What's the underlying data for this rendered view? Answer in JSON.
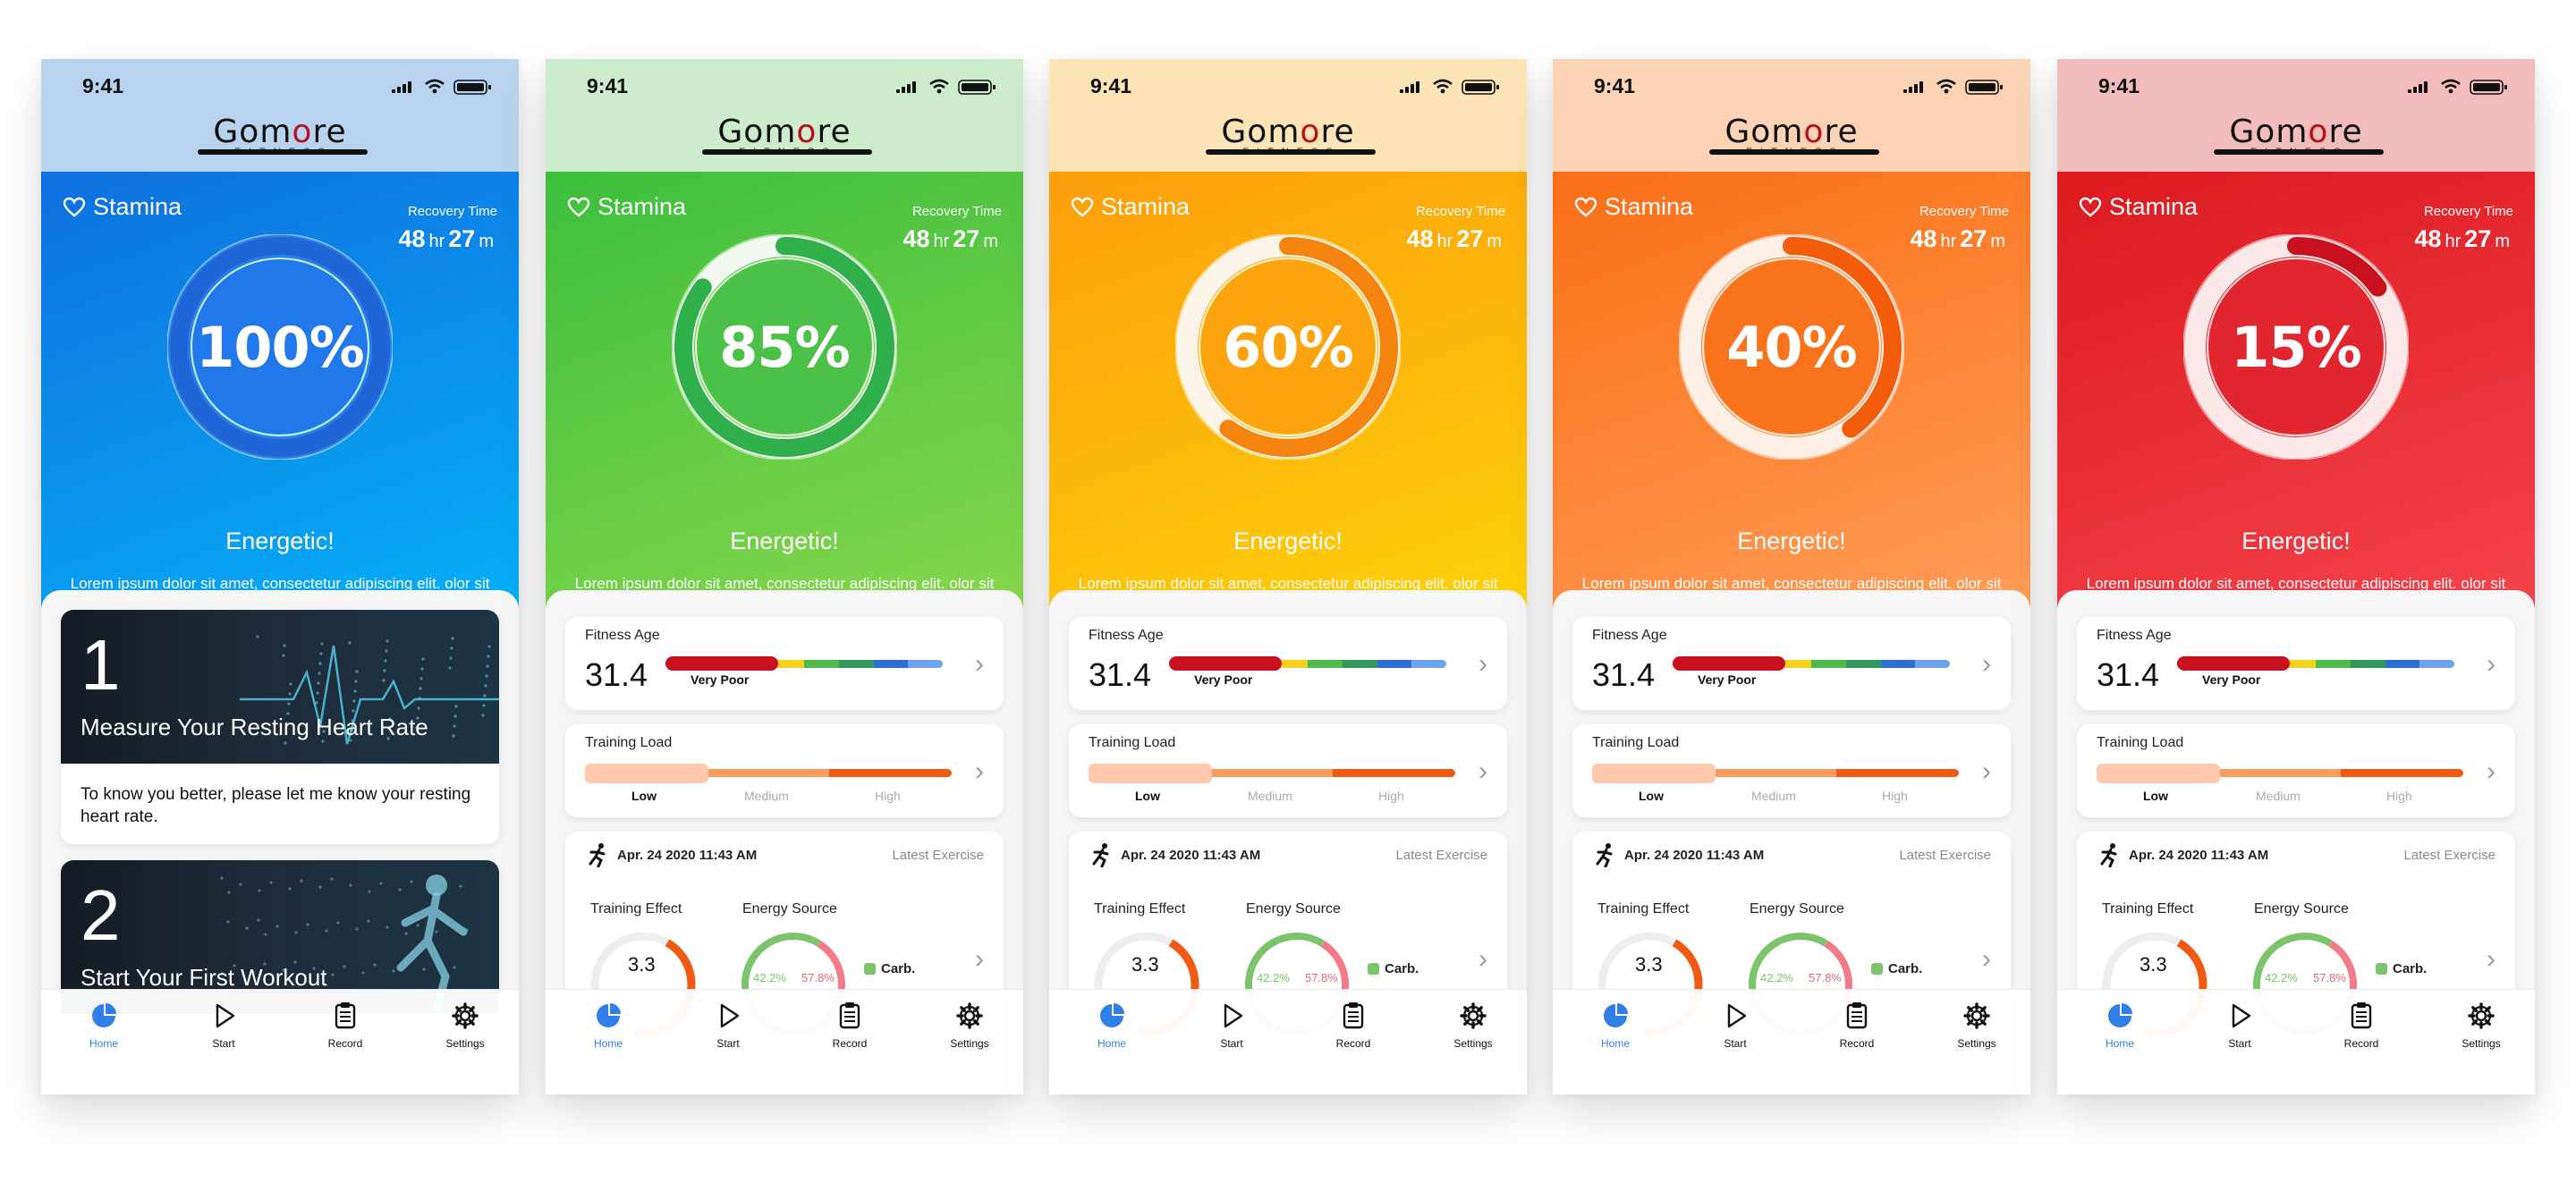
{
  "screens": [
    {
      "status": {
        "time": "9:41"
      },
      "theme": {
        "top": "#b7d3ef",
        "heroTop": "#0f6fe0",
        "heroBottom": "#06b3f7",
        "ringTrack": "#2f7fea",
        "ringArc": "#1e66d8",
        "inner": "#2178ea"
      },
      "stamina": {
        "label": "Stamina",
        "percent": 100,
        "percent_text": "100%"
      },
      "recovery": {
        "label": "Recovery Time",
        "hours": "48",
        "hr_unit": "hr",
        "minutes": "27",
        "min_unit": "m"
      },
      "status_title": "Energetic!",
      "description": "Lorem ipsum dolor sit amet, consectetur adipiscing elit. olor sit amet, consectetur adipiscing elit.",
      "steps": [
        {
          "number": "1",
          "title": "Measure Your Resting Heart Rate",
          "description": "To know you better, please let me know your resting heart rate."
        },
        {
          "number": "2",
          "title": "Start Your First Workout",
          "description": ""
        }
      ]
    },
    {
      "status": {
        "time": "9:41"
      },
      "theme": {
        "top": "#cdebcd",
        "heroTop": "#3cbf3c",
        "heroBottom": "#8bd84e",
        "ringTrack": "#f2f7ef",
        "ringArc": "#2fb04a",
        "inner": "#4cc14a"
      },
      "stamina": {
        "label": "Stamina",
        "percent": 85,
        "percent_text": "85%"
      },
      "recovery": {
        "label": "Recovery Time",
        "hours": "48",
        "hr_unit": "hr",
        "minutes": "27",
        "min_unit": "m"
      },
      "status_title": "Energetic!",
      "description": "Lorem ipsum dolor sit amet, consectetur adipiscing elit. olor sit amet, consectetur adipiscing elit."
    },
    {
      "status": {
        "time": "9:41"
      },
      "theme": {
        "top": "#fde4b6",
        "heroTop": "#fb9e0c",
        "heroBottom": "#fed40a",
        "ringTrack": "#fbf4e8",
        "ringArc": "#f5840f",
        "inner": "#fba40f"
      },
      "stamina": {
        "label": "Stamina",
        "percent": 60,
        "percent_text": "60%"
      },
      "recovery": {
        "label": "Recovery Time",
        "hours": "48",
        "hr_unit": "hr",
        "minutes": "27",
        "min_unit": "m"
      },
      "status_title": "Energetic!",
      "description": "Lorem ipsum dolor sit amet, consectetur adipiscing elit. olor sit amet, consectetur adipiscing elit."
    },
    {
      "status": {
        "time": "9:41"
      },
      "theme": {
        "top": "#fdd3b6",
        "heroTop": "#fa6e16",
        "heroBottom": "#ffa05c",
        "ringTrack": "#fbefe6",
        "ringArc": "#f25c0a",
        "inner": "#f9731c"
      },
      "stamina": {
        "label": "Stamina",
        "percent": 40,
        "percent_text": "40%"
      },
      "recovery": {
        "label": "Recovery Time",
        "hours": "48",
        "hr_unit": "hr",
        "minutes": "27",
        "min_unit": "m"
      },
      "status_title": "Energetic!",
      "description": "Lorem ipsum dolor sit amet, consectetur adipiscing elit. olor sit amet, consectetur adipiscing elit."
    },
    {
      "status": {
        "time": "9:41"
      },
      "theme": {
        "top": "#f3bcbc",
        "heroTop": "#dc1a1f",
        "heroBottom": "#f5454e",
        "ringTrack": "#fbe9ea",
        "ringArc": "#c8101e",
        "inner": "#e22630"
      },
      "stamina": {
        "label": "Stamina",
        "percent": 15,
        "percent_text": "15%"
      },
      "recovery": {
        "label": "Recovery Time",
        "hours": "48",
        "hr_unit": "hr",
        "minutes": "27",
        "min_unit": "m"
      },
      "status_title": "Energetic!",
      "description": "Lorem ipsum dolor sit amet, consectetur adipiscing elit. olor sit amet, consectetur adipiscing elit."
    }
  ],
  "logo": {
    "main_prefix": "G",
    "main_o": "o",
    "main_more": "m",
    "main_o2": "o",
    "main_suffix": "re",
    "sub": "FITNESS"
  },
  "fitness_age": {
    "label": "Fitness Age",
    "value": "31.4",
    "rating": "Very Poor"
  },
  "training_load": {
    "label": "Training Load",
    "low": "Low",
    "medium": "Medium",
    "high": "High"
  },
  "exercise": {
    "date": "Apr. 24 2020 11:43 AM",
    "latest": "Latest Exercise",
    "training_effect_label": "Training Effect",
    "training_effect_value": "3.3",
    "energy_source_label": "Energy Source",
    "energy_a": "42.2%",
    "energy_b": "57.8%",
    "energy_legend": "Carb."
  },
  "tabs": [
    {
      "label": "Home",
      "icon": "pie-chart-icon",
      "active": true
    },
    {
      "label": "Start",
      "icon": "play-icon",
      "active": false
    },
    {
      "label": "Record",
      "icon": "clipboard-icon",
      "active": false
    },
    {
      "label": "Settings",
      "icon": "gear-icon",
      "active": false
    }
  ]
}
